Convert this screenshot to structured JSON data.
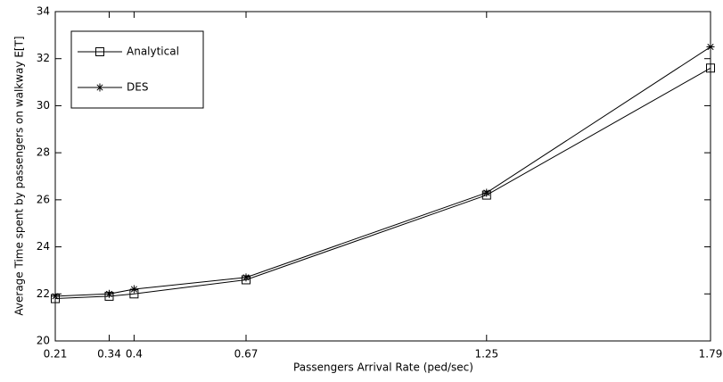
{
  "chart_data": {
    "type": "line",
    "x_label": "Passengers Arrival Rate (ped/sec)",
    "y_label": "Average Time spent by passengers on walkway  E[T]",
    "x": [
      0.21,
      0.34,
      0.4,
      0.67,
      1.25,
      1.79
    ],
    "series": [
      {
        "name": "Analytical",
        "color": "#000000",
        "marker": "square",
        "values": [
          21.8,
          21.9,
          22.0,
          22.6,
          26.2,
          31.6
        ]
      },
      {
        "name": "DES",
        "color": "#000000",
        "marker": "star",
        "values": [
          21.9,
          22.0,
          22.2,
          22.7,
          26.3,
          32.5
        ]
      }
    ],
    "xlim": [
      0.21,
      1.79
    ],
    "xticks": [
      0.21,
      0.34,
      0.4,
      0.67,
      1.25,
      1.79
    ],
    "ylim": [
      20,
      34
    ],
    "yticks": [
      20,
      22,
      24,
      26,
      28,
      30,
      32,
      34
    ],
    "grid": false,
    "legend": "upper left"
  }
}
